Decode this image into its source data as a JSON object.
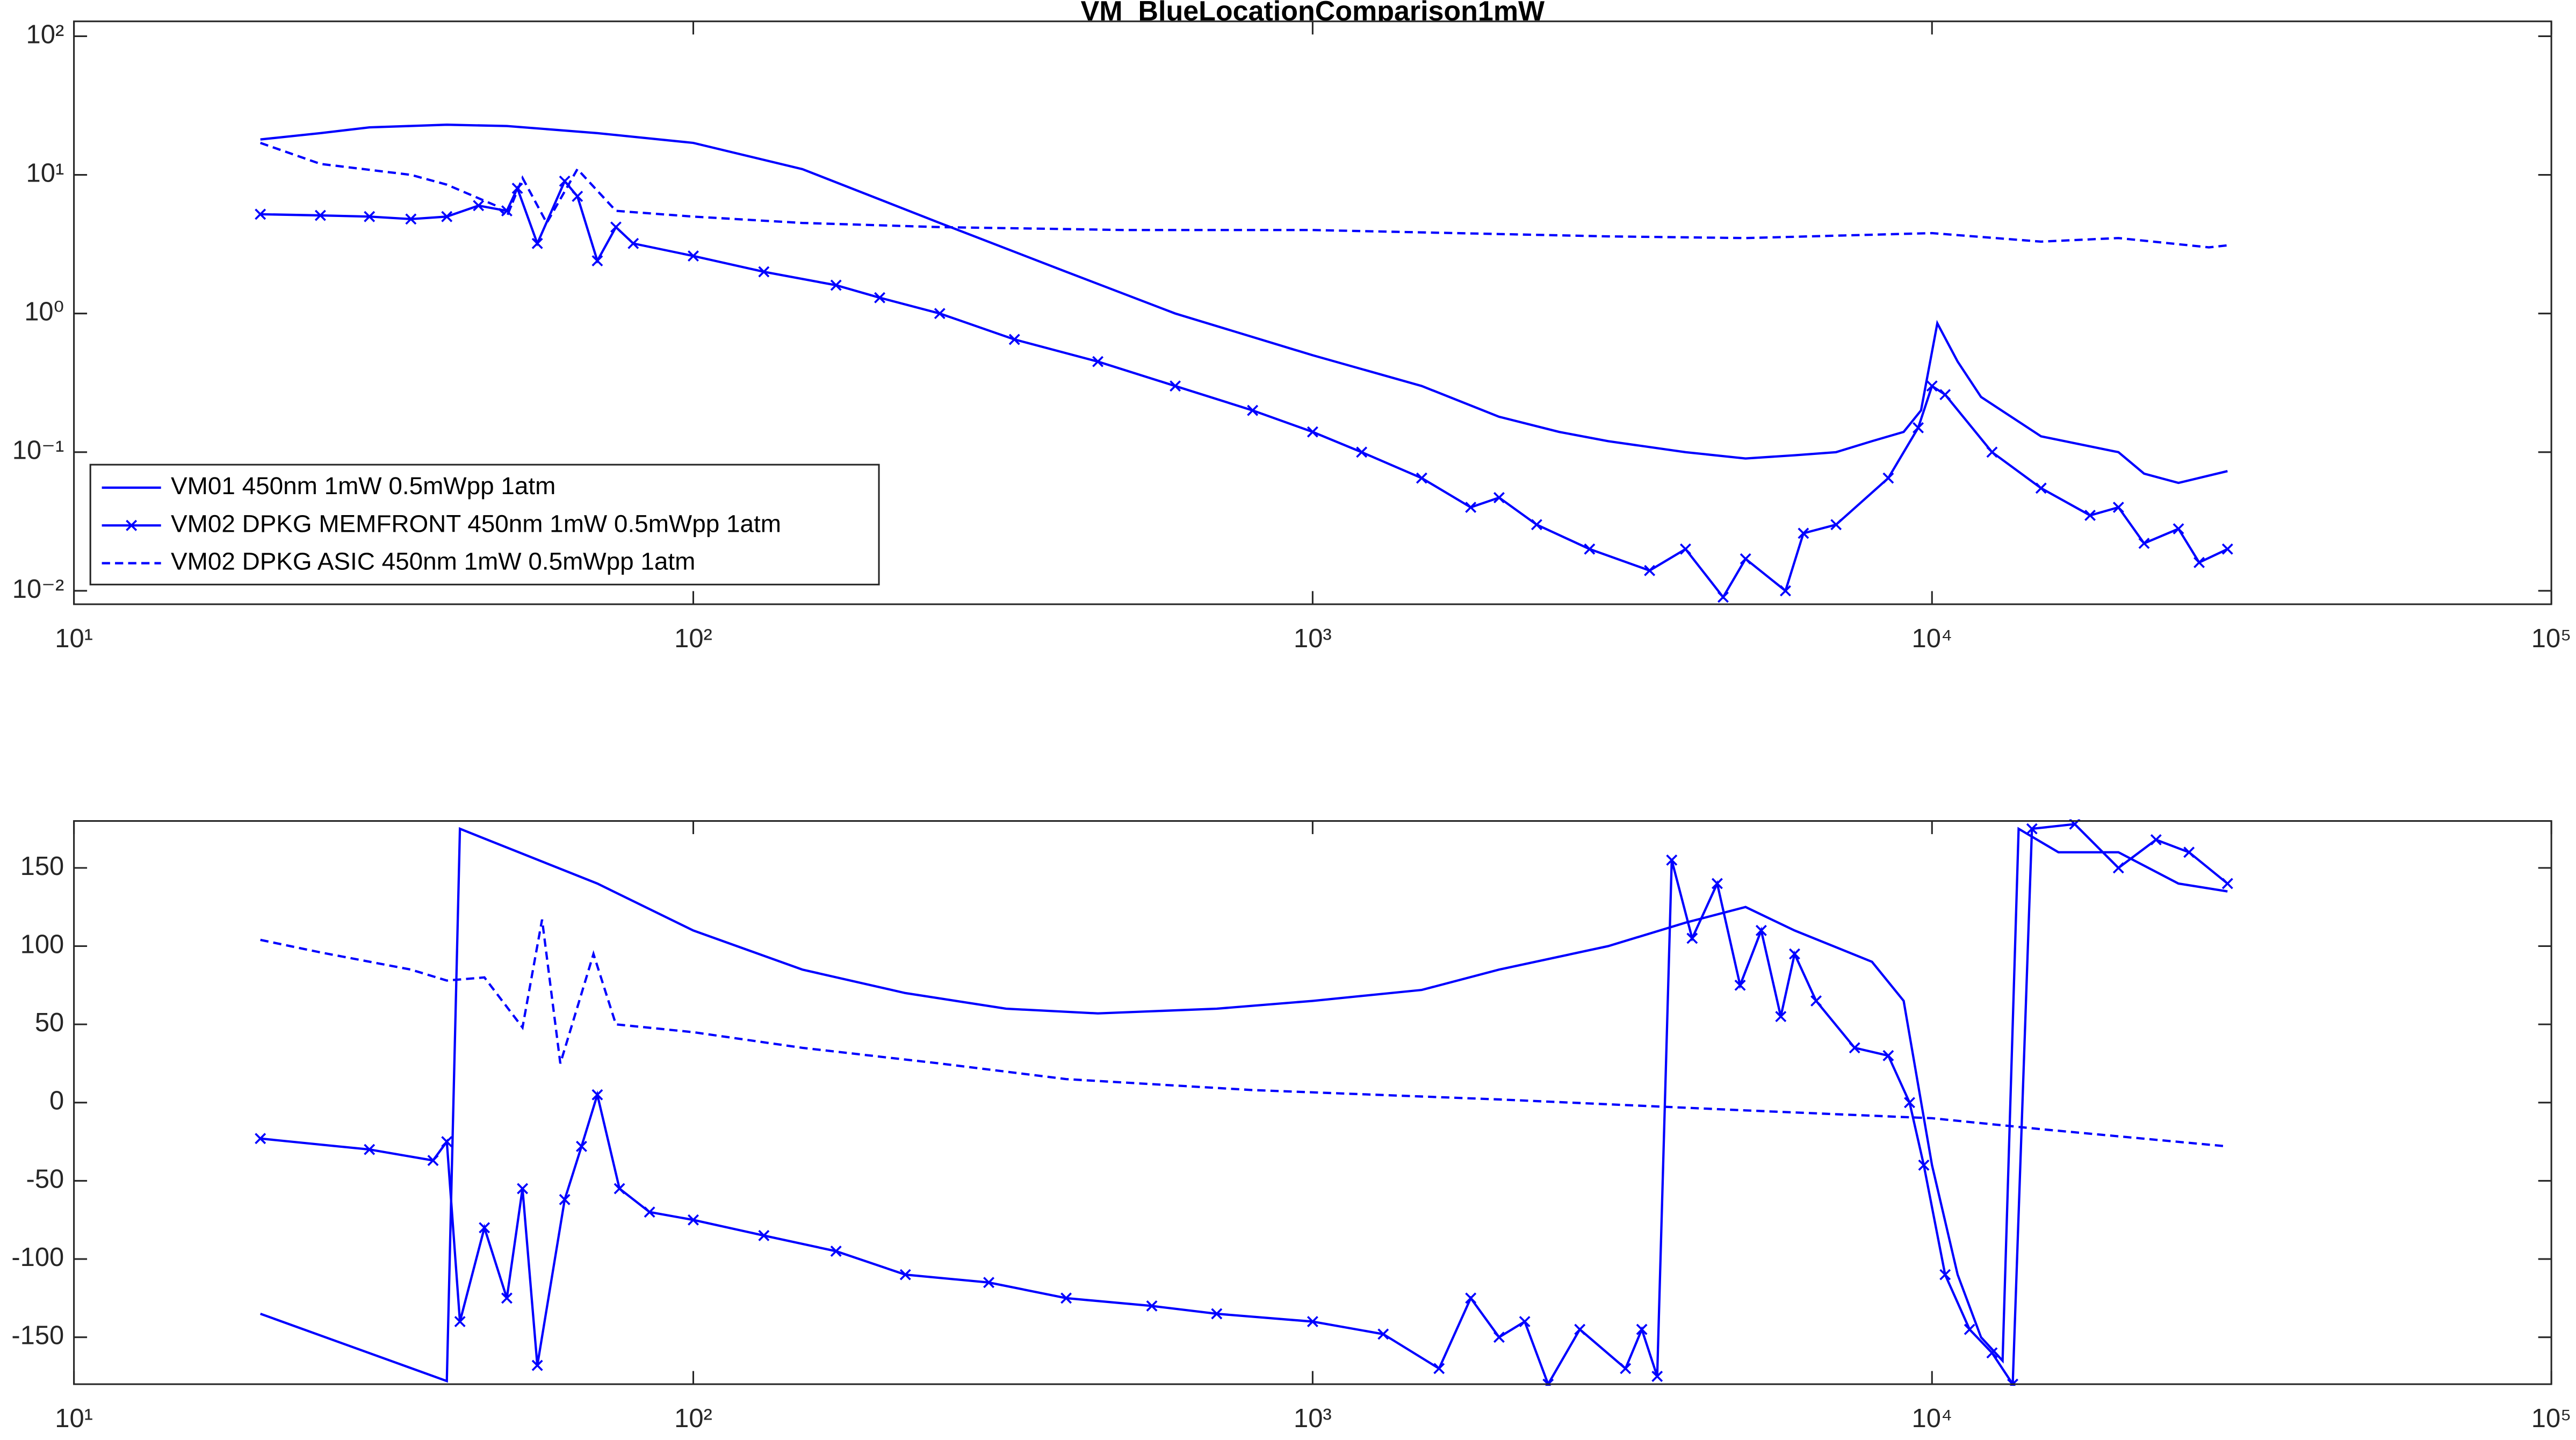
{
  "chart_data": [
    {
      "type": "line",
      "title": "VM_BlueLocationComparison1mW",
      "xscale": "log",
      "yscale": "log",
      "xlim": [
        10,
        100000
      ],
      "xticks": [
        {
          "value": 10,
          "label": "10¹"
        },
        {
          "value": 100,
          "label": "10²"
        },
        {
          "value": 1000,
          "label": "10³"
        },
        {
          "value": 10000,
          "label": "10⁴"
        },
        {
          "value": 100000,
          "label": "10⁵"
        }
      ],
      "ylim": [
        0.008,
        128
      ],
      "yticks": [
        {
          "value": 0.01,
          "label": "10⁻²"
        },
        {
          "value": 0.1,
          "label": "10⁻¹"
        },
        {
          "value": 1,
          "label": "10⁰"
        },
        {
          "value": 10,
          "label": "10¹"
        },
        {
          "value": 100,
          "label": "10²"
        }
      ],
      "legend": "lower left",
      "series": [
        {
          "name": "VM01 450nm 1mW 0.5mWpp 1atm",
          "color": "#0000ff",
          "style": "solid",
          "x": [
            20,
            25,
            30,
            40,
            50,
            70,
            100,
            150,
            250,
            400,
            600,
            1000,
            1500,
            2000,
            2500,
            3000,
            4000,
            5000,
            6000,
            7000,
            8000,
            9000,
            9600,
            10200,
            11000,
            12000,
            15000,
            20000,
            22000,
            25000,
            30000
          ],
          "values": [
            18,
            20,
            22,
            23,
            22.5,
            20,
            17,
            11,
            4.5,
            2,
            1,
            0.5,
            0.3,
            0.18,
            0.14,
            0.12,
            0.1,
            0.09,
            0.095,
            0.1,
            0.12,
            0.14,
            0.2,
            0.85,
            0.45,
            0.25,
            0.13,
            0.1,
            0.07,
            0.06,
            0.073
          ]
        },
        {
          "name": "VM02 DPKG MEMFRONT 450nm 1mW 0.5mWpp 1atm",
          "color": "#0000ff",
          "style": "solid",
          "marker": "x",
          "x": [
            20,
            25,
            30,
            35,
            40,
            45,
            50,
            52,
            56,
            62,
            65,
            70,
            75,
            80,
            100,
            130,
            170,
            200,
            250,
            330,
            450,
            600,
            800,
            1000,
            1200,
            1500,
            1800,
            2000,
            2300,
            2800,
            3500,
            4000,
            4600,
            5000,
            5800,
            6200,
            7000,
            8500,
            9500,
            10000,
            10500,
            12500,
            15000,
            18000,
            20000,
            22000,
            25000,
            27000,
            30000
          ],
          "values": [
            5.2,
            5.1,
            5,
            4.8,
            5,
            6,
            5.5,
            8,
            3.2,
            9,
            7,
            2.4,
            4.2,
            3.2,
            2.6,
            2,
            1.6,
            1.3,
            1,
            0.65,
            0.45,
            0.3,
            0.2,
            0.14,
            0.1,
            0.065,
            0.04,
            0.047,
            0.03,
            0.02,
            0.014,
            0.02,
            0.009,
            0.017,
            0.01,
            0.026,
            0.03,
            0.065,
            0.15,
            0.3,
            0.26,
            0.1,
            0.055,
            0.035,
            0.04,
            0.022,
            0.028,
            0.016,
            0.02
          ]
        },
        {
          "name": "VM02 DPKG ASIC 450nm 1mW 0.5mWpp 1atm",
          "color": "#0000ff",
          "style": "dashed",
          "x": [
            20,
            25,
            35,
            40,
            48,
            50,
            53,
            58,
            65,
            75,
            100,
            150,
            250,
            500,
            1000,
            3000,
            5000,
            10000,
            15000,
            20000,
            28000,
            30000
          ],
          "values": [
            17,
            12,
            10,
            8.5,
            6,
            5,
            9.5,
            4.5,
            11,
            5.5,
            5,
            4.5,
            4.2,
            4,
            4,
            3.6,
            3.5,
            3.8,
            3.3,
            3.5,
            3,
            3.1
          ]
        }
      ]
    },
    {
      "type": "line",
      "xscale": "log",
      "yscale": "linear",
      "xlim": [
        10,
        100000
      ],
      "xticks": [
        {
          "value": 10,
          "label": "10¹"
        },
        {
          "value": 100,
          "label": "10²"
        },
        {
          "value": 1000,
          "label": "10³"
        },
        {
          "value": 10000,
          "label": "10⁴"
        },
        {
          "value": 100000,
          "label": "10⁵"
        }
      ],
      "ylim": [
        -180,
        180
      ],
      "yticks": [
        -150,
        -100,
        -50,
        0,
        50,
        100,
        150
      ],
      "series": [
        {
          "color": "#0000ff",
          "style": "solid",
          "x": [
            20,
            40,
            42,
            70,
            100,
            150,
            220,
            320,
            450,
            700,
            1000,
            1500,
            2000,
            3000,
            4000,
            5000,
            6000,
            8000,
            9000,
            10000,
            11000,
            12000,
            13000,
            13800,
            16000,
            20000,
            25000,
            30000
          ],
          "values": [
            -135,
            -178,
            175,
            140,
            110,
            85,
            70,
            60,
            57,
            60,
            65,
            72,
            85,
            100,
            115,
            125,
            110,
            90,
            65,
            -40,
            -110,
            -150,
            -165,
            175,
            160,
            160,
            140,
            135
          ]
        },
        {
          "color": "#0000ff",
          "style": "solid",
          "marker": "x",
          "x": [
            20,
            30,
            38,
            40,
            42,
            46,
            50,
            53,
            56,
            62,
            66,
            70,
            76,
            85,
            100,
            130,
            170,
            220,
            300,
            400,
            550,
            700,
            1000,
            1300,
            1600,
            1800,
            2000,
            2200,
            2400,
            2700,
            3200,
            3400,
            3600,
            3800,
            4100,
            4500,
            4900,
            5300,
            5700,
            6000,
            6500,
            7500,
            8500,
            9200,
            9700,
            10500,
            11500,
            12500,
            13500,
            14500,
            17000,
            20000,
            23000,
            26000,
            30000
          ],
          "values": [
            -23,
            -30,
            -37,
            -25,
            -140,
            -80,
            -125,
            -55,
            -168,
            -62,
            -28,
            5,
            -55,
            -70,
            -75,
            -85,
            -95,
            -110,
            -115,
            -125,
            -130,
            -135,
            -140,
            -148,
            -170,
            -125,
            -150,
            -140,
            -180,
            -145,
            -170,
            -145,
            -175,
            155,
            105,
            140,
            75,
            110,
            55,
            95,
            65,
            35,
            30,
            0,
            -40,
            -110,
            -145,
            -160,
            -180,
            175,
            178,
            150,
            168,
            160,
            140
          ]
        },
        {
          "color": "#0000ff",
          "style": "dashed",
          "x": [
            20,
            25,
            35,
            40,
            46,
            53,
            57,
            61,
            69,
            75,
            100,
            150,
            250,
            400,
            800,
            2000,
            5000,
            10000,
            15000,
            30000
          ],
          "values": [
            104,
            96,
            85,
            78,
            80,
            48,
            117,
            25,
            95,
            50,
            45,
            35,
            25,
            15,
            8,
            2,
            -5,
            -10,
            -17,
            -28
          ]
        }
      ]
    }
  ]
}
